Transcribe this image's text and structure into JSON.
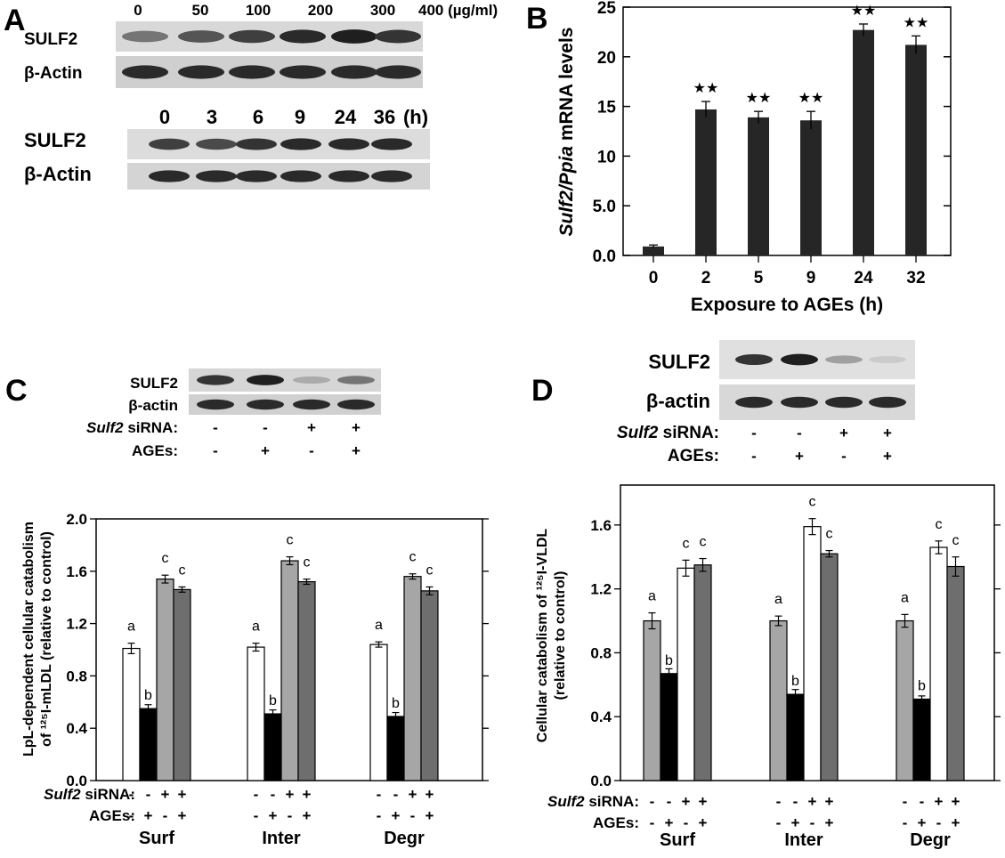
{
  "panels": {
    "A": "A",
    "B": "B",
    "C": "C",
    "D": "D"
  },
  "blot_a1": {
    "lane_labels": [
      "0",
      "50",
      "100",
      "200",
      "300",
      "400 (µg/ml)"
    ],
    "rows": [
      "SULF2",
      "β-Actin"
    ],
    "intensities": {
      "SULF2": [
        0.55,
        0.7,
        0.8,
        0.9,
        0.95,
        0.85
      ],
      "β-Actin": [
        0.9,
        0.9,
        0.9,
        0.9,
        0.9,
        0.9
      ]
    }
  },
  "blot_a2": {
    "lane_labels": [
      "0",
      "3",
      "6",
      "9",
      "24",
      "36",
      "(h)"
    ],
    "rows": [
      "SULF2",
      "β-Actin"
    ],
    "intensities": {
      "SULF2": [
        0.8,
        0.75,
        0.85,
        0.9,
        0.9,
        0.9
      ],
      "β-Actin": [
        0.9,
        0.9,
        0.9,
        0.9,
        0.9,
        0.9
      ]
    }
  },
  "blot_c": {
    "rows": [
      "SULF2",
      "β-actin"
    ],
    "conditions": [
      {
        "label": "Sulf2",
        "suffix": " siRNA:",
        "signs": [
          "-",
          "-",
          "+",
          "+"
        ]
      },
      {
        "label": "",
        "suffix": "AGEs:",
        "signs": [
          "-",
          "+",
          "-",
          "+"
        ]
      }
    ],
    "intensities": {
      "SULF2": [
        0.85,
        0.95,
        0.3,
        0.55
      ],
      "β-actin": [
        0.9,
        0.9,
        0.9,
        0.9
      ]
    }
  },
  "blot_d": {
    "rows": [
      "SULF2",
      "β-actin"
    ],
    "conditions": [
      {
        "label": "Sulf2",
        "suffix": " siRNA:",
        "signs": [
          "-",
          "-",
          "+",
          "+"
        ]
      },
      {
        "label": "",
        "suffix": "AGEs:",
        "signs": [
          "-",
          "+",
          "-",
          "+"
        ]
      }
    ],
    "intensities": {
      "SULF2": [
        0.85,
        0.95,
        0.35,
        0.15
      ],
      "β-actin": [
        0.9,
        0.9,
        0.9,
        0.9
      ]
    }
  },
  "colors": {
    "bar_dark": "#262626",
    "light_gray": "#a6a6a6",
    "dark_gray": "#6e6e6e",
    "white": "#ffffff",
    "black": "#000000"
  },
  "chart_data": [
    {
      "id": "B",
      "type": "bar",
      "ylabel_italic": "Sulf2/Ppia",
      "ylabel_rest": " mRNA levels",
      "xlabel": "Exposure to AGEs (h)",
      "categories": [
        "0",
        "2",
        "5",
        "9",
        "24",
        "32"
      ],
      "values": [
        0.9,
        14.7,
        13.9,
        13.6,
        22.7,
        21.2
      ],
      "errors": [
        0.15,
        0.8,
        0.6,
        0.9,
        0.6,
        0.9
      ],
      "significance": [
        "",
        "★★",
        "★★",
        "★★",
        "★★",
        "★★"
      ],
      "yticks": [
        "0.0",
        "5.0",
        "10",
        "15",
        "20",
        "25"
      ],
      "ylim": [
        0,
        25
      ]
    },
    {
      "id": "C",
      "type": "bar",
      "ylabel_lines": [
        "LpL-dependent cellular catabolism",
        "of ¹²⁵I-mLDL (relative to control)"
      ],
      "yticks": [
        "0.0",
        "0.4",
        "0.8",
        "1.2",
        "1.6",
        "2.0"
      ],
      "ylim": [
        0,
        2.0
      ],
      "groups": [
        "Surf",
        "Inter",
        "Degr"
      ],
      "series": [
        {
          "fill": "#ffffff",
          "values": [
            1.01,
            1.02,
            1.04
          ],
          "errors": [
            0.04,
            0.03,
            0.02
          ],
          "letters": [
            "a",
            "a",
            "a"
          ]
        },
        {
          "fill": "#000000",
          "values": [
            0.55,
            0.51,
            0.49
          ],
          "errors": [
            0.03,
            0.03,
            0.03
          ],
          "letters": [
            "b",
            "b",
            "b"
          ]
        },
        {
          "fill": "#a6a6a6",
          "values": [
            1.54,
            1.68,
            1.56
          ],
          "errors": [
            0.03,
            0.03,
            0.02
          ],
          "letters": [
            "c",
            "c",
            "c"
          ]
        },
        {
          "fill": "#6e6e6e",
          "values": [
            1.46,
            1.52,
            1.45
          ],
          "errors": [
            0.02,
            0.02,
            0.03
          ],
          "letters": [
            "c",
            "c",
            "c"
          ]
        }
      ],
      "conditions": [
        {
          "label": "Sulf2",
          "suffix": " siRNA:",
          "signs": [
            "-",
            "-",
            "+",
            "+"
          ]
        },
        {
          "label": "",
          "suffix": "AGEs:",
          "signs": [
            "-",
            "+",
            "-",
            "+"
          ]
        }
      ]
    },
    {
      "id": "D",
      "type": "bar",
      "ylabel_lines": [
        "Cellular catabolism of ¹²⁵I-VLDL",
        "(relative to control)"
      ],
      "yticks": [
        "0.0",
        "0.4",
        "0.8",
        "1.2",
        "1.6"
      ],
      "ylim": [
        0,
        1.85
      ],
      "groups": [
        "Surf",
        "Inter",
        "Degr"
      ],
      "series": [
        {
          "fill": "#a6a6a6",
          "values": [
            1.0,
            1.0,
            1.0
          ],
          "errors": [
            0.05,
            0.03,
            0.04
          ],
          "letters": [
            "a",
            "a",
            "a"
          ]
        },
        {
          "fill": "#000000",
          "values": [
            0.67,
            0.54,
            0.51
          ],
          "errors": [
            0.03,
            0.03,
            0.02
          ],
          "letters": [
            "b",
            "b",
            "b"
          ]
        },
        {
          "fill": "#ffffff",
          "values": [
            1.33,
            1.59,
            1.46
          ],
          "errors": [
            0.05,
            0.05,
            0.04
          ],
          "letters": [
            "c",
            "c",
            "c"
          ]
        },
        {
          "fill": "#6e6e6e",
          "values": [
            1.35,
            1.42,
            1.34
          ],
          "errors": [
            0.04,
            0.02,
            0.06
          ],
          "letters": [
            "c",
            "c",
            "c"
          ]
        }
      ],
      "conditions": [
        {
          "label": "Sulf2",
          "suffix": " siRNA:",
          "signs": [
            "-",
            "-",
            "+",
            "+"
          ]
        },
        {
          "label": "",
          "suffix": "AGEs:",
          "signs": [
            "-",
            "+",
            "-",
            "+"
          ]
        }
      ]
    }
  ]
}
